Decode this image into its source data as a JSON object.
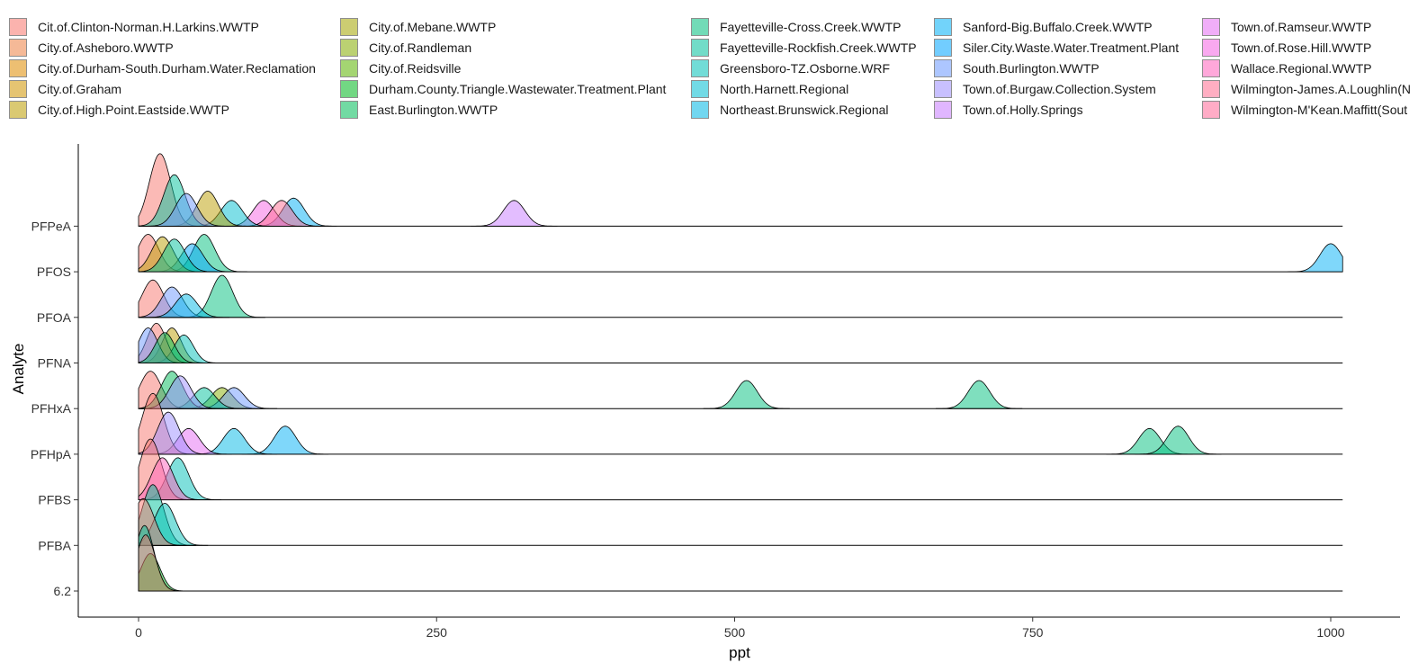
{
  "chart_data": {
    "type": "ridgeline",
    "title": "",
    "xlabel": "ppt",
    "ylabel": "Analyte",
    "xlim": [
      0,
      1010
    ],
    "x_ticks": [
      "0",
      "250",
      "500",
      "750",
      "1000"
    ],
    "x_tick_values": [
      0,
      250,
      500,
      750,
      1000
    ],
    "categories": [
      "6.2",
      "PFBA",
      "PFBS",
      "PFHpA",
      "PFHxA",
      "PFNA",
      "PFOA",
      "PFOS",
      "PFPeA"
    ],
    "legend_position": "top",
    "grid": false,
    "series": [
      {
        "name": "Cit.of.Clinton-Norman.H.Larkins.WWTP",
        "color": "#F8766D"
      },
      {
        "name": "City.of.Asheboro.WWTP",
        "color": "#EE8043"
      },
      {
        "name": "City.of.Durham-South.Durham.Water.Reclamation",
        "color": "#E08B00"
      },
      {
        "name": "City.of.Graham",
        "color": "#D09400"
      },
      {
        "name": "City.of.High.Point.Eastside.WWTP",
        "color": "#BC9D00"
      },
      {
        "name": "City.of.Mebane.WWTP",
        "color": "#A3A500"
      },
      {
        "name": "City.of.Randleman",
        "color": "#85AD00"
      },
      {
        "name": "City.of.Reidsville",
        "color": "#5BB300"
      },
      {
        "name": "Durham.County.Triangle.Wastewater.Treatment.Plant",
        "color": "#00B81F"
      },
      {
        "name": "East.Burlington.WWTP",
        "color": "#00BC59"
      },
      {
        "name": "Fayetteville-Cross.Creek.WWTP",
        "color": "#00BF7D"
      },
      {
        "name": "Fayetteville-Rockfish.Creek.WWTP",
        "color": "#00C19C"
      },
      {
        "name": "Greensboro-TZ.Osborne.WRF",
        "color": "#00C0B8"
      },
      {
        "name": "North.Harnett.Regional",
        "color": "#00BDD0"
      },
      {
        "name": "Northeast.Brunswick.Regional",
        "color": "#00B8E5"
      },
      {
        "name": "Sanford-Big.Buffalo.Creek.WWTP",
        "color": "#00B0F6"
      },
      {
        "name": "Siler.City.Waste.Water.Treatment.Plant",
        "color": "#00A5FF"
      },
      {
        "name": "South.Burlington.WWTP",
        "color": "#6B98FF"
      },
      {
        "name": "Town.of.Burgaw.Collection.System",
        "color": "#9C8DFF"
      },
      {
        "name": "Town.of.Holly.Springs",
        "color": "#C77CFF"
      },
      {
        "name": "Town.of.Ramseur.WWTP",
        "color": "#E56CF3"
      },
      {
        "name": "Town.of.Rose.Hill.WWTP",
        "color": "#F564E3"
      },
      {
        "name": "Wallace.Regional.WWTP",
        "color": "#FF62BC"
      },
      {
        "name": "Wilmington-James.A.Loughlin(N",
        "color": "#FF6C91"
      },
      {
        "name": "Wilmington-M'Kean.Maffitt(Sout",
        "color": "#FF6A98"
      }
    ],
    "ridges": [
      {
        "category": "6.2",
        "bandwidth": 8,
        "peaks": [
          {
            "series": 11,
            "x": 5,
            "h": 1.4
          },
          {
            "series": 8,
            "x": 10,
            "h": 0.8
          },
          {
            "series": 0,
            "x": 6,
            "h": 1.2
          }
        ]
      },
      {
        "category": "PFBA",
        "bandwidth": 9,
        "peaks": [
          {
            "series": 11,
            "x": 12,
            "h": 1.3
          },
          {
            "series": 12,
            "x": 22,
            "h": 0.9
          },
          {
            "series": 0,
            "x": 4,
            "h": 1.0
          }
        ]
      },
      {
        "category": "PFBS",
        "bandwidth": 9,
        "peaks": [
          {
            "series": 12,
            "x": 33,
            "h": 0.9
          },
          {
            "series": 0,
            "x": 10,
            "h": 1.3
          },
          {
            "series": 22,
            "x": 20,
            "h": 0.9
          }
        ]
      },
      {
        "category": "PFHpA",
        "bandwidth": 9,
        "peaks": [
          {
            "series": 10,
            "x": 848,
            "h": 0.55
          },
          {
            "series": 10,
            "x": 872,
            "h": 0.6
          },
          {
            "series": 15,
            "x": 123,
            "h": 0.6
          },
          {
            "series": 14,
            "x": 80,
            "h": 0.55
          },
          {
            "series": 20,
            "x": 42,
            "h": 0.55
          },
          {
            "series": 0,
            "x": 12,
            "h": 1.3
          },
          {
            "series": 18,
            "x": 25,
            "h": 0.9
          }
        ]
      },
      {
        "category": "PFHxA",
        "bandwidth": 9,
        "peaks": [
          {
            "series": 10,
            "x": 510,
            "h": 0.6
          },
          {
            "series": 10,
            "x": 705,
            "h": 0.6
          },
          {
            "series": 6,
            "x": 70,
            "h": 0.45
          },
          {
            "series": 17,
            "x": 80,
            "h": 0.45
          },
          {
            "series": 11,
            "x": 55,
            "h": 0.45
          },
          {
            "series": 0,
            "x": 10,
            "h": 0.8
          },
          {
            "series": 9,
            "x": 28,
            "h": 0.8
          },
          {
            "series": 18,
            "x": 35,
            "h": 0.7
          }
        ]
      },
      {
        "category": "PFNA",
        "bandwidth": 8,
        "peaks": [
          {
            "series": 4,
            "x": 28,
            "h": 0.75
          },
          {
            "series": 12,
            "x": 38,
            "h": 0.6
          },
          {
            "series": 0,
            "x": 15,
            "h": 0.85
          },
          {
            "series": 17,
            "x": 8,
            "h": 0.75
          },
          {
            "series": 9,
            "x": 22,
            "h": 0.65
          }
        ]
      },
      {
        "category": "PFOA",
        "bandwidth": 9,
        "peaks": [
          {
            "series": 10,
            "x": 70,
            "h": 0.9
          },
          {
            "series": 0,
            "x": 12,
            "h": 0.8
          },
          {
            "series": 17,
            "x": 28,
            "h": 0.65
          },
          {
            "series": 14,
            "x": 40,
            "h": 0.5
          }
        ]
      },
      {
        "category": "PFOS",
        "bandwidth": 9,
        "peaks": [
          {
            "series": 15,
            "x": 1000,
            "h": 0.6
          },
          {
            "series": 10,
            "x": 55,
            "h": 0.8
          },
          {
            "series": 16,
            "x": 45,
            "h": 0.6
          },
          {
            "series": 0,
            "x": 8,
            "h": 0.8
          },
          {
            "series": 4,
            "x": 20,
            "h": 0.75
          },
          {
            "series": 11,
            "x": 30,
            "h": 0.7
          }
        ]
      },
      {
        "category": "PFPeA",
        "bandwidth": 9,
        "peaks": [
          {
            "series": 19,
            "x": 315,
            "h": 0.55
          },
          {
            "series": 15,
            "x": 130,
            "h": 0.6
          },
          {
            "series": 21,
            "x": 105,
            "h": 0.55
          },
          {
            "series": 23,
            "x": 120,
            "h": 0.55
          },
          {
            "series": 13,
            "x": 78,
            "h": 0.55
          },
          {
            "series": 4,
            "x": 58,
            "h": 0.75
          },
          {
            "series": 0,
            "x": 18,
            "h": 1.55
          },
          {
            "series": 11,
            "x": 30,
            "h": 1.1
          },
          {
            "series": 17,
            "x": 40,
            "h": 0.7
          }
        ]
      }
    ]
  }
}
